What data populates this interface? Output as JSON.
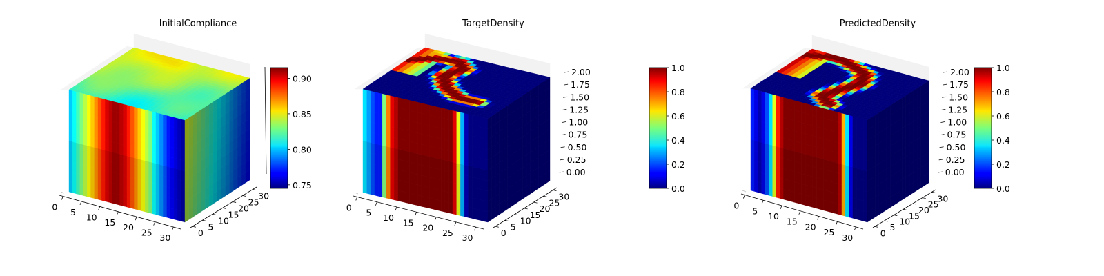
{
  "chart_data": [
    {
      "type": "voxel3d",
      "title": "InitialCompliance",
      "x_ticks": [
        "0",
        "5",
        "10",
        "15",
        "20",
        "25",
        "30"
      ],
      "y_ticks": [
        "0",
        "5",
        "10",
        "15",
        "20",
        "25",
        "30"
      ],
      "colormap": "jet",
      "colorbar": {
        "min": 0.745,
        "max": 0.915,
        "ticks": [
          "0.75",
          "0.80",
          "0.85",
          "0.90"
        ]
      },
      "front_profile": [
        0.8,
        0.81,
        0.82,
        0.83,
        0.84,
        0.85,
        0.86,
        0.87,
        0.88,
        0.89,
        0.9,
        0.905,
        0.91,
        0.91,
        0.905,
        0.9,
        0.89,
        0.88,
        0.87,
        0.86,
        0.85,
        0.84,
        0.83,
        0.81,
        0.8,
        0.79,
        0.78,
        0.77,
        0.765,
        0.76,
        0.755,
        0.75
      ]
    },
    {
      "type": "voxel3d",
      "title": "TargetDensity",
      "x_ticks": [
        "0",
        "5",
        "10",
        "15",
        "20",
        "25",
        "30"
      ],
      "y_ticks": [
        "0",
        "5",
        "10",
        "15",
        "20",
        "25",
        "30"
      ],
      "z_ticks": [
        "0.00",
        "0.25",
        "0.50",
        "0.75",
        "1.00",
        "1.25",
        "1.50",
        "1.75",
        "2.00"
      ],
      "colormap": "jet",
      "colorbar": {
        "min": 0.0,
        "max": 1.0,
        "ticks": [
          "0.0",
          "0.2",
          "0.4",
          "0.6",
          "0.8",
          "1.0"
        ]
      },
      "front_profile": [
        0.35,
        0.28,
        0.2,
        0.15,
        0.15,
        0.5,
        0.75,
        0.9,
        0.95,
        1,
        1,
        1,
        1,
        1,
        1,
        1,
        1,
        1,
        1,
        1,
        1,
        1,
        1,
        0.9,
        0.6,
        0.3,
        0.05,
        0,
        0,
        0,
        0,
        0
      ]
    },
    {
      "type": "voxel3d",
      "title": "PredictedDensity",
      "x_ticks": [
        "0",
        "5",
        "10",
        "15",
        "20",
        "25",
        "30"
      ],
      "y_ticks": [
        "0",
        "5",
        "10",
        "15",
        "20",
        "25",
        "30"
      ],
      "z_ticks": [
        "0.00",
        "0.25",
        "0.50",
        "0.75",
        "1.00",
        "1.25",
        "1.50",
        "1.75",
        "2.00"
      ],
      "colormap": "jet",
      "colorbar": {
        "min": 0.0,
        "max": 1.0,
        "ticks": [
          "0.0",
          "0.2",
          "0.4",
          "0.6",
          "0.8",
          "1.0"
        ]
      },
      "front_profile": [
        0.15,
        0.1,
        0.05,
        0.1,
        0.2,
        0.35,
        0.6,
        0.85,
        0.95,
        1,
        1,
        1,
        1,
        1,
        1,
        1,
        1,
        1,
        1,
        1,
        1,
        1,
        1,
        1,
        0.95,
        0.7,
        0.35,
        0.1,
        0,
        0,
        0,
        0
      ]
    }
  ]
}
